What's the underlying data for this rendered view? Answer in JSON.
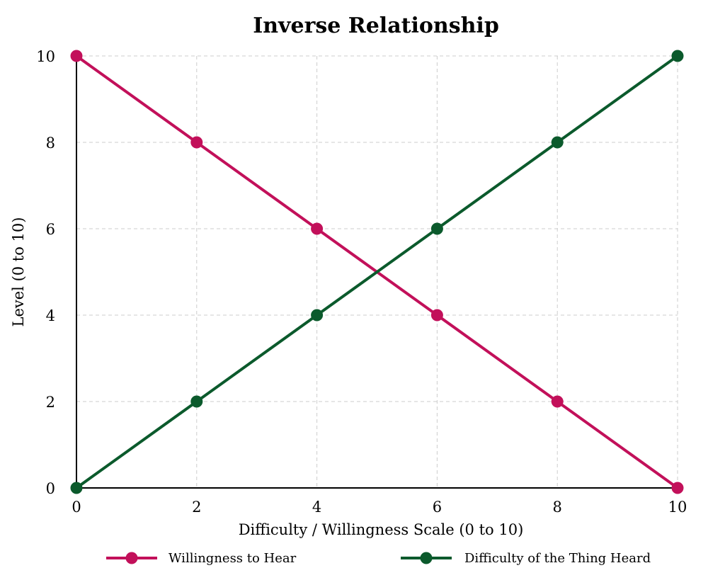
{
  "chart_data": {
    "type": "line",
    "title": "Inverse Relationship",
    "xlabel": "Difficulty / Willingness Scale (0 to 10)",
    "ylabel": "Level (0 to 10)",
    "xlim": [
      0,
      10
    ],
    "ylim": [
      0,
      10
    ],
    "xticks": [
      0,
      2,
      4,
      6,
      8,
      10
    ],
    "yticks": [
      0,
      2,
      4,
      6,
      8,
      10
    ],
    "grid": true,
    "legend_position": "bottom",
    "x": [
      0,
      2,
      4,
      6,
      8,
      10
    ],
    "series": [
      {
        "name": "Willingness to Hear",
        "color": "#c2105a",
        "values": [
          10,
          8,
          6,
          4,
          2,
          0
        ]
      },
      {
        "name": "Difficulty of the Thing Heard",
        "color": "#0b5a2c",
        "values": [
          0,
          2,
          4,
          6,
          8,
          10
        ]
      }
    ]
  }
}
